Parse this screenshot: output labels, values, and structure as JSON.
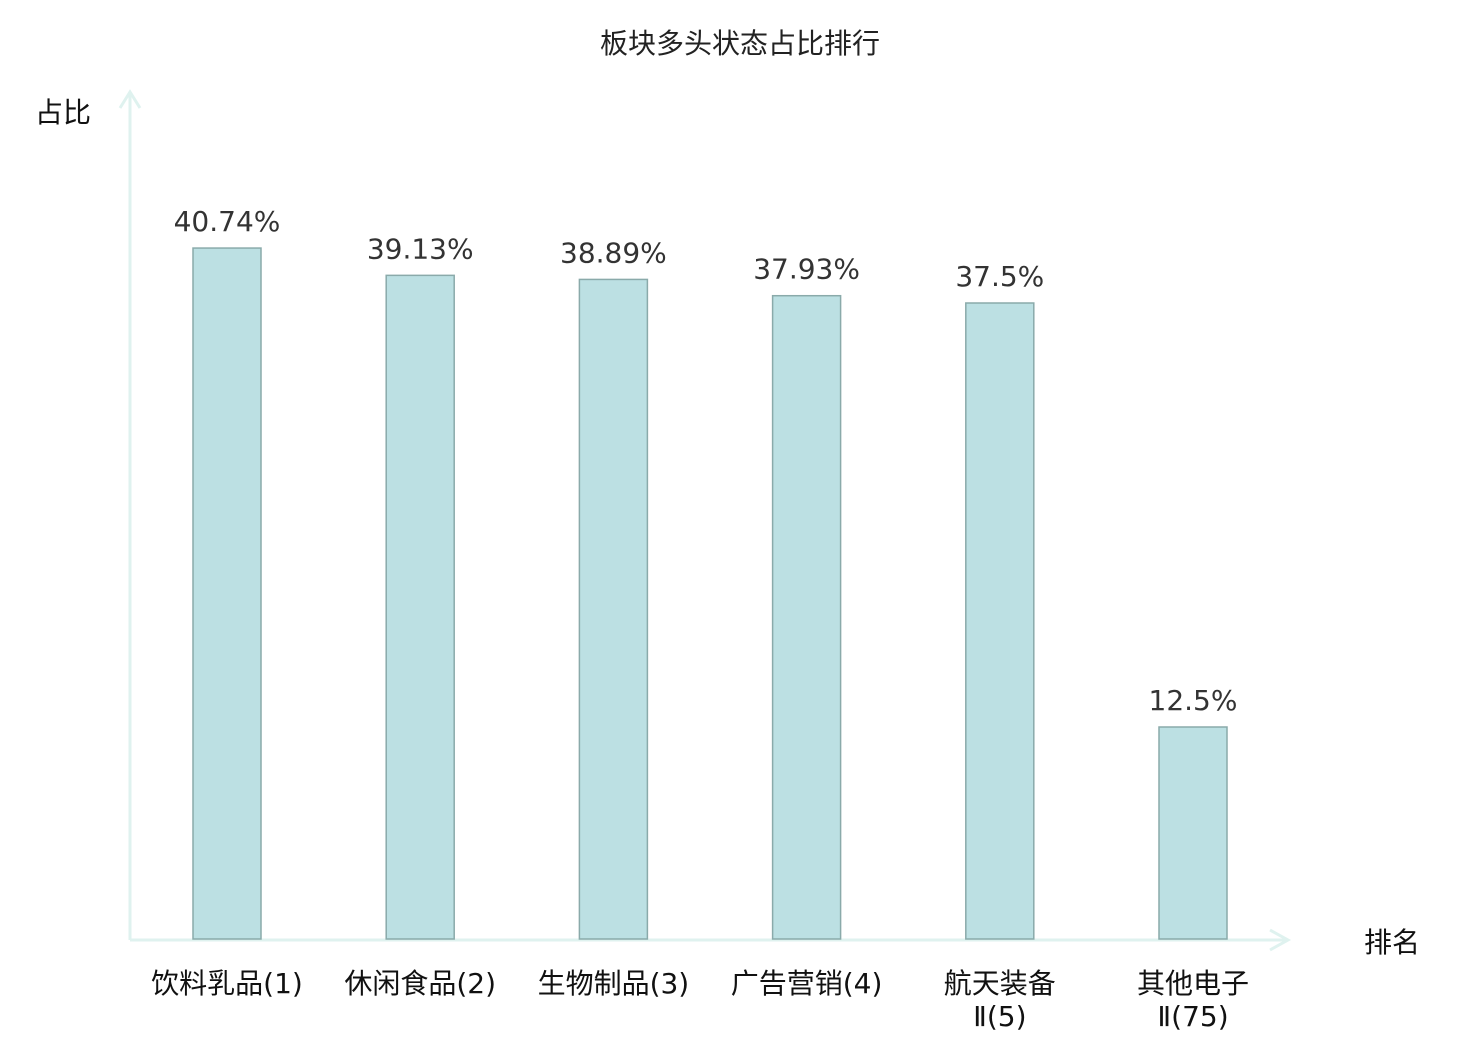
{
  "chart_data": {
    "type": "bar",
    "title": "板块多头状态占比排行",
    "xlabel": "排名",
    "ylabel": "占比",
    "categories": [
      "饮料乳品(1)",
      "休闲食品(2)",
      "生物制品(3)",
      "广告营销(4)",
      "航天装备Ⅱ(5)",
      "其他电子Ⅱ(75)"
    ],
    "values": [
      40.74,
      39.13,
      38.89,
      37.93,
      37.5,
      12.5
    ],
    "data_labels": [
      "40.74%",
      "39.13%",
      "38.89%",
      "37.93%",
      "37.5%",
      "12.5%"
    ],
    "highlight_index": 5,
    "ylim": [
      0,
      50
    ],
    "grid": false,
    "colors": {
      "bar_fill": "#bce0e3",
      "bar_stroke": "#8aaaaa",
      "axis": "#dff2ef",
      "highlight_label": "#ee1111",
      "text": "#111111"
    }
  }
}
